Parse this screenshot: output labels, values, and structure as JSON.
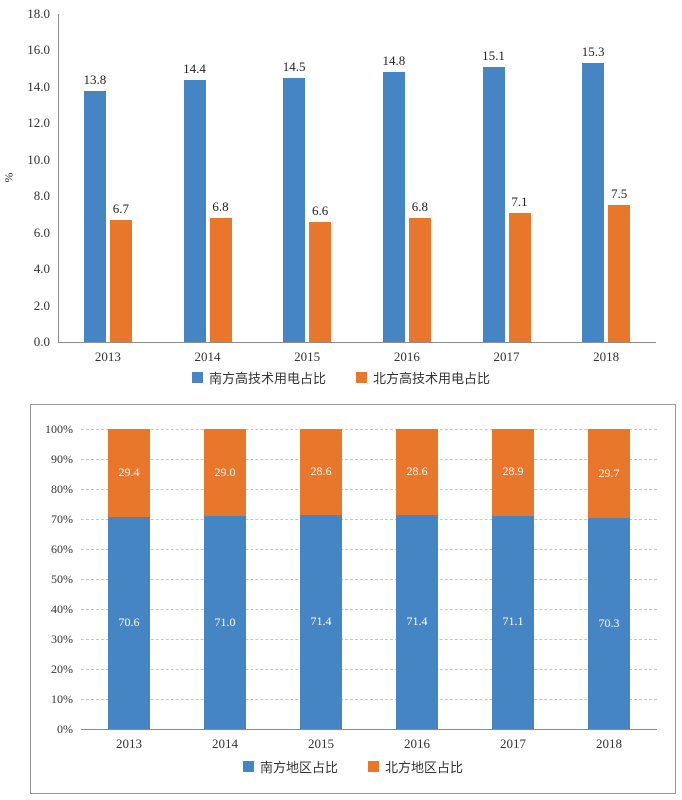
{
  "colors": {
    "south_blue": "#4585C4",
    "north_orange": "#E8762B"
  },
  "charts": [
    {
      "name": "high-tech-electricity-share",
      "type": "bar",
      "title": "",
      "ylabel": "%",
      "ylim": [
        0,
        18
      ],
      "ytick_labels": [
        "0.0",
        "2.0",
        "4.0",
        "6.0",
        "8.0",
        "10.0",
        "12.0",
        "14.0",
        "16.0",
        "18.0"
      ],
      "categories": [
        "2013",
        "2014",
        "2015",
        "2016",
        "2017",
        "2018"
      ],
      "series": [
        {
          "name": "南方高技术用电占比",
          "color": "#4585C4",
          "values": [
            13.8,
            14.4,
            14.5,
            14.8,
            15.1,
            15.3
          ]
        },
        {
          "name": "北方高技术用电占比",
          "color": "#E8762B",
          "values": [
            6.7,
            6.8,
            6.6,
            6.8,
            7.1,
            7.5
          ]
        }
      ],
      "legend_position": "bottom",
      "grid": false,
      "data_labels": "above"
    },
    {
      "name": "regional-electricity-share",
      "type": "bar",
      "subtype": "stacked-100",
      "title": "",
      "ylabel": "",
      "ylim": [
        0,
        100
      ],
      "ytick_labels": [
        "0%",
        "10%",
        "20%",
        "30%",
        "40%",
        "50%",
        "60%",
        "70%",
        "80%",
        "90%",
        "100%"
      ],
      "categories": [
        "2013",
        "2014",
        "2015",
        "2016",
        "2017",
        "2018"
      ],
      "series": [
        {
          "name": "南方地区占比",
          "color": "#4585C4",
          "values": [
            70.6,
            71.0,
            71.4,
            71.4,
            71.1,
            70.3
          ]
        },
        {
          "name": "北方地区占比",
          "color": "#E8762B",
          "values": [
            29.4,
            29.0,
            28.6,
            28.6,
            28.9,
            29.7
          ]
        }
      ],
      "legend_position": "bottom",
      "grid": true,
      "data_labels": "inside"
    }
  ]
}
